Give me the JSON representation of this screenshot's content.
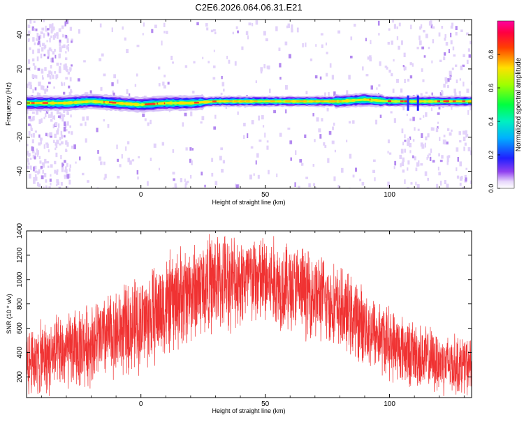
{
  "title": "C2E6.2026.064.06.31.E21",
  "colors": {
    "line": "#f03232",
    "frame": "#000000",
    "colormap": [
      "#ffffff",
      "#d9c3f5",
      "#7a2cf0",
      "#2020ff",
      "#00d0ff",
      "#00ff60",
      "#c8ff00",
      "#ffd000",
      "#ff3020",
      "#ff0080"
    ]
  },
  "chart_data": [
    {
      "type": "heatmap",
      "name": "spectrogram",
      "xlabel": "Height of straight line (km)",
      "ylabel": "Frequency (Hz)",
      "xlim": [
        -46,
        133
      ],
      "ylim": [
        -50,
        49
      ],
      "xticks": [
        0,
        50,
        100
      ],
      "yticks": [
        -40,
        -20,
        0,
        20,
        40
      ],
      "grid": false,
      "band": {
        "center_frequency_hz": [
          [
            -46,
            0
          ],
          [
            -30,
            0
          ],
          [
            -20,
            1
          ],
          [
            -10,
            0
          ],
          [
            0,
            -1
          ],
          [
            10,
            0
          ],
          [
            20,
            0
          ],
          [
            30,
            1
          ],
          [
            40,
            1
          ],
          [
            50,
            1
          ],
          [
            60,
            1
          ],
          [
            70,
            1
          ],
          [
            80,
            1
          ],
          [
            90,
            2
          ],
          [
            100,
            1
          ],
          [
            110,
            1
          ],
          [
            120,
            1
          ],
          [
            133,
            1
          ]
        ],
        "description_values": {
          "max_normalized_amplitude": 1.0
        }
      },
      "colorbar": {
        "label": "Normalized spectral amplitude",
        "range": [
          0,
          1
        ],
        "ticks": [
          "0.0",
          "0.2",
          "0.4",
          "0.6",
          "0.8"
        ],
        "tick_values": [
          0,
          0.2,
          0.4,
          0.6,
          0.8
        ]
      }
    },
    {
      "type": "line",
      "name": "snr",
      "xlabel": "Height of straight line (km)",
      "ylabel": "SNR (10 * v/v)",
      "xlim": [
        -46,
        133
      ],
      "ylim": [
        30,
        1400
      ],
      "xticks": [
        0,
        50,
        100
      ],
      "yticks": [
        200,
        400,
        600,
        800,
        1000,
        1200,
        1400
      ],
      "grid": false,
      "series": [
        {
          "name": "SNR",
          "envelope_mean": [
            [
              -46,
              330
            ],
            [
              -40,
              350
            ],
            [
              -30,
              400
            ],
            [
              -20,
              480
            ],
            [
              -10,
              560
            ],
            [
              0,
              640
            ],
            [
              10,
              780
            ],
            [
              20,
              900
            ],
            [
              30,
              980
            ],
            [
              40,
              1000
            ],
            [
              50,
              990
            ],
            [
              60,
              940
            ],
            [
              70,
              880
            ],
            [
              80,
              760
            ],
            [
              90,
              620
            ],
            [
              100,
              480
            ],
            [
              110,
              380
            ],
            [
              120,
              320
            ],
            [
              133,
              290
            ]
          ],
          "envelope_spread": [
            [
              -46,
              280
            ],
            [
              -30,
              300
            ],
            [
              -10,
              340
            ],
            [
              10,
              400
            ],
            [
              30,
              380
            ],
            [
              50,
              360
            ],
            [
              70,
              340
            ],
            [
              90,
              300
            ],
            [
              110,
              260
            ],
            [
              133,
              220
            ]
          ]
        }
      ]
    }
  ]
}
